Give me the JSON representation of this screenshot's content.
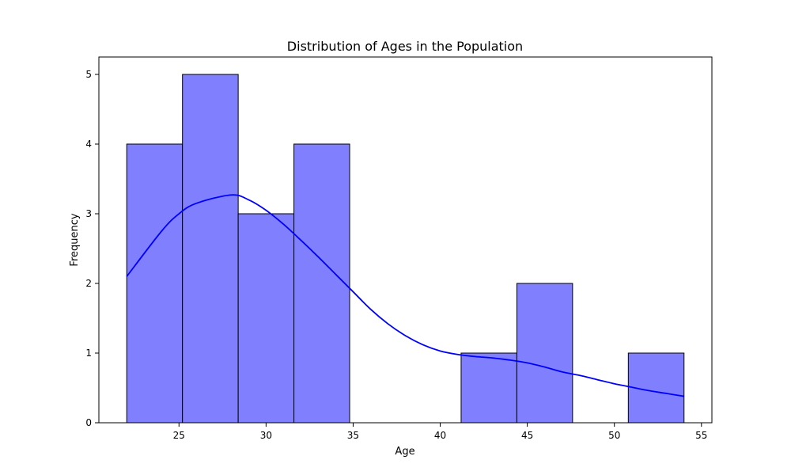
{
  "chart_data": {
    "type": "bar",
    "title": "Distribution of Ages in the Population",
    "xlabel": "Age",
    "ylabel": "Frequency",
    "xlim": [
      20.4,
      55.6
    ],
    "ylim": [
      0,
      5.25
    ],
    "xticks": [
      25,
      30,
      35,
      40,
      45,
      50,
      55
    ],
    "yticks": [
      0,
      1,
      2,
      3,
      4,
      5
    ],
    "bins": [
      {
        "x0": 22.0,
        "x1": 25.2,
        "count": 4
      },
      {
        "x0": 25.2,
        "x1": 28.4,
        "count": 5
      },
      {
        "x0": 28.4,
        "x1": 31.6,
        "count": 3
      },
      {
        "x0": 31.6,
        "x1": 34.8,
        "count": 4
      },
      {
        "x0": 34.8,
        "x1": 38.0,
        "count": 0
      },
      {
        "x0": 38.0,
        "x1": 41.2,
        "count": 0
      },
      {
        "x0": 41.2,
        "x1": 44.4,
        "count": 1
      },
      {
        "x0": 44.4,
        "x1": 47.6,
        "count": 2
      },
      {
        "x0": 47.6,
        "x1": 50.8,
        "count": 0
      },
      {
        "x0": 50.8,
        "x1": 54.0,
        "count": 1
      }
    ],
    "kde": {
      "x": [
        22,
        24,
        25,
        26,
        28,
        29,
        30,
        31,
        32,
        33,
        34,
        35,
        36,
        37,
        38,
        39,
        40,
        41,
        42,
        43,
        44,
        45,
        46,
        47,
        48,
        49,
        50,
        51,
        52,
        53,
        54
      ],
      "y": [
        2.1,
        2.75,
        3.0,
        3.15,
        3.27,
        3.2,
        3.05,
        2.85,
        2.62,
        2.38,
        2.13,
        1.88,
        1.63,
        1.42,
        1.25,
        1.12,
        1.03,
        0.98,
        0.95,
        0.93,
        0.9,
        0.86,
        0.8,
        0.73,
        0.68,
        0.62,
        0.56,
        0.51,
        0.46,
        0.42,
        0.38
      ]
    },
    "grid": false,
    "colors": {
      "bar_fill": "#8080ff",
      "bar_edge": "#000000",
      "kde_line": "#0000ff"
    }
  }
}
